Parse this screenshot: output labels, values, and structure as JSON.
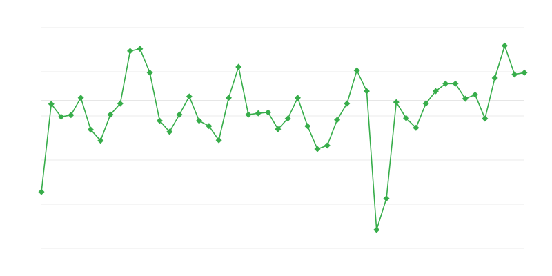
{
  "chart_data": {
    "type": "line",
    "x": [
      1,
      2,
      3,
      4,
      5,
      6,
      7,
      8,
      9,
      10,
      11,
      12,
      13,
      14,
      15,
      16,
      17,
      18,
      19,
      20,
      21,
      22,
      23,
      24,
      25,
      26,
      27,
      28,
      29,
      30,
      31,
      32,
      33,
      34,
      35,
      36,
      37,
      38,
      39,
      40,
      41,
      42,
      43,
      44,
      45,
      46,
      47,
      48,
      49,
      50
    ],
    "xlim": [
      1,
      50
    ],
    "series": [
      {
        "color": "#37ad4a",
        "values": [
          1.28,
          3.27,
          2.98,
          3.02,
          3.41,
          2.69,
          2.44,
          3.03,
          3.28,
          4.47,
          4.52,
          3.98,
          2.89,
          2.64,
          3.03,
          3.44,
          2.89,
          2.77,
          2.45,
          3.41,
          4.11,
          3.03,
          3.06,
          3.08,
          2.7,
          2.94,
          3.41,
          2.77,
          2.25,
          2.33,
          2.91,
          3.28,
          4.03,
          3.56,
          0.42,
          1.13,
          3.31,
          2.95,
          2.73,
          3.28,
          3.56,
          3.73,
          3.73,
          3.39,
          3.48,
          2.94,
          3.86,
          4.59,
          3.94,
          3.98
        ]
      }
    ],
    "ylim": [
      0,
      5
    ],
    "yticks": [
      0,
      1,
      2,
      3,
      4,
      5
    ],
    "grid": true,
    "reference_line": 3.34
  }
}
